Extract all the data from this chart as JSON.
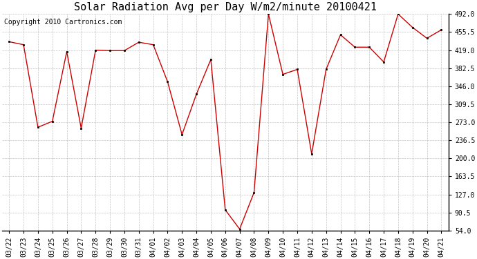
{
  "title": "Solar Radiation Avg per Day W/m2/minute 20100421",
  "copyright": "Copyright 2010 Cartronics.com",
  "labels": [
    "03/22",
    "03/23",
    "03/24",
    "03/25",
    "03/26",
    "03/27",
    "03/28",
    "03/29",
    "03/30",
    "03/31",
    "04/01",
    "04/02",
    "04/03",
    "04/04",
    "04/05",
    "04/06",
    "04/07",
    "04/08",
    "04/09",
    "04/10",
    "04/11",
    "04/12",
    "04/13",
    "04/14",
    "04/15",
    "04/16",
    "04/17",
    "04/18",
    "04/19",
    "04/20",
    "04/21"
  ],
  "values": [
    436,
    430,
    263,
    275,
    416,
    261,
    419,
    418,
    418,
    435,
    430,
    355,
    248,
    330,
    400,
    96,
    57,
    131,
    492,
    370,
    380,
    209,
    380,
    450,
    425,
    425,
    395,
    492,
    465,
    443,
    460
  ],
  "line_color": "#cc0000",
  "marker_color": "#000000",
  "bg_color": "#ffffff",
  "grid_color": "#aaaaaa",
  "yticks": [
    54.0,
    90.5,
    127.0,
    163.5,
    200.0,
    236.5,
    273.0,
    309.5,
    346.0,
    382.5,
    419.0,
    455.5,
    492.0
  ],
  "ymin": 54.0,
  "ymax": 492.0,
  "title_fontsize": 11,
  "copyright_fontsize": 7,
  "tick_fontsize": 7,
  "figwidth": 6.9,
  "figheight": 3.75,
  "dpi": 100
}
